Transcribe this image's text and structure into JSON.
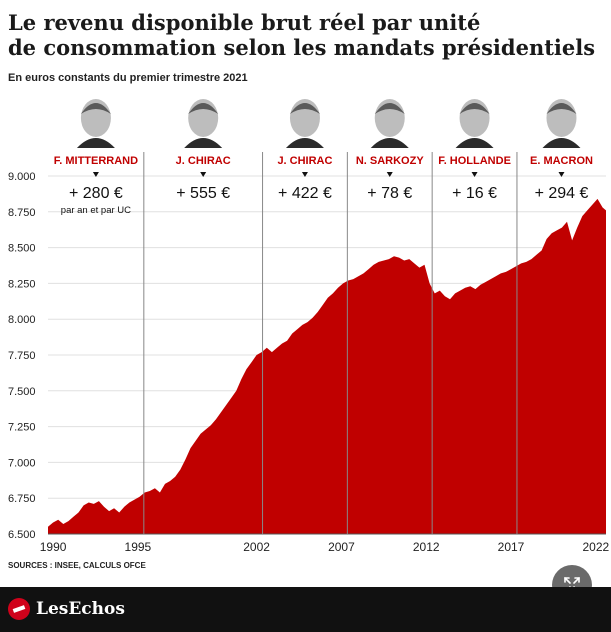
{
  "header": {
    "title_line1": "Le revenu disponible brut réel par unité",
    "title_line2": "de consommation selon les mandats présidentiels",
    "subtitle": "En euros constants du premier trimestre 2021"
  },
  "source": "SOURCES : INSEE, CALCULS OFCE",
  "footer": {
    "brand": "LesEchos",
    "logo_icon": "les-echos-logo-icon"
  },
  "expand_icon": "expand-arrows-icon",
  "colors": {
    "area": "#c00000",
    "label": "#c00000",
    "grid": "#e0e0e0"
  },
  "chart_data": {
    "type": "area",
    "title": "Le revenu disponible brut réel par unité de consommation selon les mandats présidentiels",
    "subtitle": "En euros constants du premier trimestre 2021",
    "xlim": [
      1989.7,
      2022.6
    ],
    "ylim": [
      6500,
      9000
    ],
    "yticks": [
      "6.500",
      "6.750",
      "7.000",
      "7.250",
      "7.500",
      "7.750",
      "8.000",
      "8.250",
      "8.500",
      "8.750",
      "9.000"
    ],
    "ytick_values": [
      6500,
      6750,
      7000,
      7250,
      7500,
      7750,
      8000,
      8250,
      8500,
      8750,
      9000
    ],
    "xticks": [
      "1990",
      "1995",
      "2002",
      "2007",
      "2012",
      "2017",
      "2022"
    ],
    "xtick_values": [
      1990,
      1995,
      2002,
      2007,
      2012,
      2017,
      2022
    ],
    "grid": true,
    "mandates": [
      {
        "president": "F. MITTERRAND",
        "start": 1989.7,
        "end": 1995.35,
        "gain": "+ 280 €",
        "note": "par an et par UC",
        "portrait_icon": "portrait-mitterrand"
      },
      {
        "president": "J. CHIRAC",
        "start": 1995.35,
        "end": 2002.35,
        "gain": "+ 555 €",
        "portrait_icon": "portrait-chirac-1"
      },
      {
        "president": "J. CHIRAC",
        "start": 2002.35,
        "end": 2007.35,
        "gain": "+ 422 €",
        "portrait_icon": "portrait-chirac-2"
      },
      {
        "president": "N. SARKOZY",
        "start": 2007.35,
        "end": 2012.35,
        "gain": "+ 78 €",
        "portrait_icon": "portrait-sarkozy"
      },
      {
        "president": "F. HOLLANDE",
        "start": 2012.35,
        "end": 2017.35,
        "gain": "+ 16 €",
        "portrait_icon": "portrait-hollande"
      },
      {
        "president": "E. MACRON",
        "start": 2017.35,
        "end": 2022.6,
        "gain": "+ 294 €",
        "portrait_icon": "portrait-macron"
      }
    ],
    "series": [
      {
        "x": [
          1989.7,
          1990.0,
          1990.3,
          1990.6,
          1990.9,
          1991.2,
          1991.5,
          1991.8,
          1992.1,
          1992.4,
          1992.7,
          1993.0,
          1993.3,
          1993.6,
          1993.9,
          1994.2,
          1994.5,
          1994.8,
          1995.1,
          1995.4,
          1995.7,
          1996.0,
          1996.3,
          1996.6,
          1996.9,
          1997.2,
          1997.5,
          1997.8,
          1998.1,
          1998.4,
          1998.7,
          1999.0,
          1999.3,
          1999.6,
          1999.9,
          2000.2,
          2000.5,
          2000.8,
          2001.1,
          2001.4,
          2001.7,
          2002.0,
          2002.3,
          2002.6,
          2002.9,
          2003.2,
          2003.5,
          2003.8,
          2004.1,
          2004.4,
          2004.7,
          2005.0,
          2005.3,
          2005.6,
          2005.9,
          2006.2,
          2006.5,
          2006.8,
          2007.1,
          2007.4,
          2007.7,
          2008.0,
          2008.3,
          2008.6,
          2008.9,
          2009.2,
          2009.5,
          2009.8,
          2010.1,
          2010.4,
          2010.7,
          2011.0,
          2011.3,
          2011.6,
          2011.9,
          2012.2,
          2012.5,
          2012.8,
          2013.1,
          2013.4,
          2013.7,
          2014.0,
          2014.3,
          2014.6,
          2014.9,
          2015.2,
          2015.5,
          2015.8,
          2016.1,
          2016.4,
          2016.7,
          2017.0,
          2017.3,
          2017.6,
          2017.9,
          2018.2,
          2018.5,
          2018.8,
          2019.1,
          2019.4,
          2019.7,
          2020.0,
          2020.3,
          2020.6,
          2020.9,
          2021.2,
          2021.5,
          2021.8,
          2022.1,
          2022.4,
          2022.6
        ],
        "y": [
          6550,
          6580,
          6600,
          6570,
          6590,
          6620,
          6650,
          6700,
          6720,
          6710,
          6730,
          6690,
          6660,
          6680,
          6650,
          6690,
          6720,
          6740,
          6760,
          6790,
          6800,
          6820,
          6790,
          6850,
          6870,
          6900,
          6950,
          7020,
          7100,
          7150,
          7200,
          7230,
          7260,
          7300,
          7350,
          7400,
          7450,
          7500,
          7580,
          7650,
          7700,
          7750,
          7770,
          7800,
          7770,
          7800,
          7830,
          7850,
          7900,
          7930,
          7960,
          7980,
          8010,
          8050,
          8100,
          8150,
          8180,
          8220,
          8250,
          8270,
          8280,
          8300,
          8320,
          8350,
          8380,
          8400,
          8410,
          8420,
          8440,
          8430,
          8410,
          8420,
          8390,
          8360,
          8380,
          8250,
          8180,
          8200,
          8160,
          8140,
          8180,
          8200,
          8220,
          8230,
          8210,
          8240,
          8260,
          8280,
          8300,
          8320,
          8330,
          8350,
          8370,
          8390,
          8400,
          8420,
          8450,
          8480,
          8560,
          8600,
          8620,
          8640,
          8680,
          8550,
          8640,
          8720,
          8760,
          8800,
          8840,
          8780,
          8760
        ]
      }
    ]
  }
}
